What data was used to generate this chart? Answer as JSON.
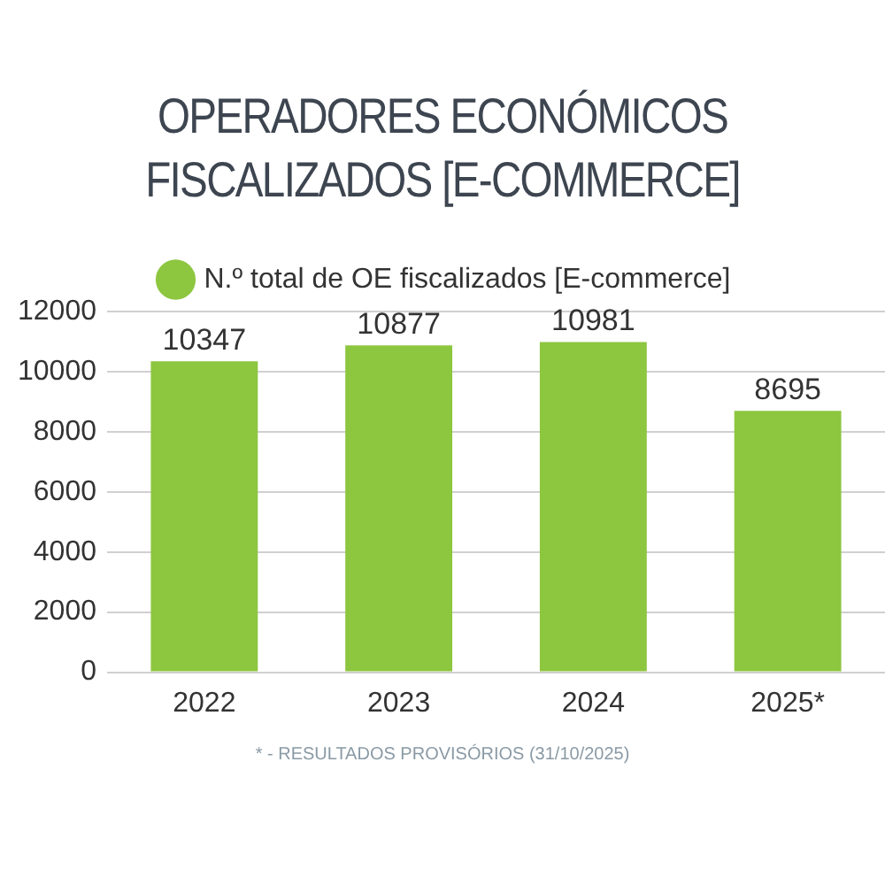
{
  "chart_data": {
    "type": "bar",
    "title": "OPERADORES ECONÓMICOS FISCALIZADOS [E-COMMERCE]",
    "categories": [
      "2022",
      "2023",
      "2024",
      "2025*"
    ],
    "series": [
      {
        "name": "N.º total de OE fiscalizados [E-commerce]",
        "color": "#8dc63f",
        "values": [
          10347,
          10877,
          10981,
          8695
        ]
      }
    ],
    "ylim": [
      0,
      12000
    ],
    "yticks": [
      0,
      2000,
      4000,
      6000,
      8000,
      10000,
      12000
    ],
    "grid": "y",
    "legend": "top",
    "data_labels": true,
    "annotations": [
      "* - RESULTADOS PROVISÓRIOS (31/10/2025)"
    ]
  }
}
